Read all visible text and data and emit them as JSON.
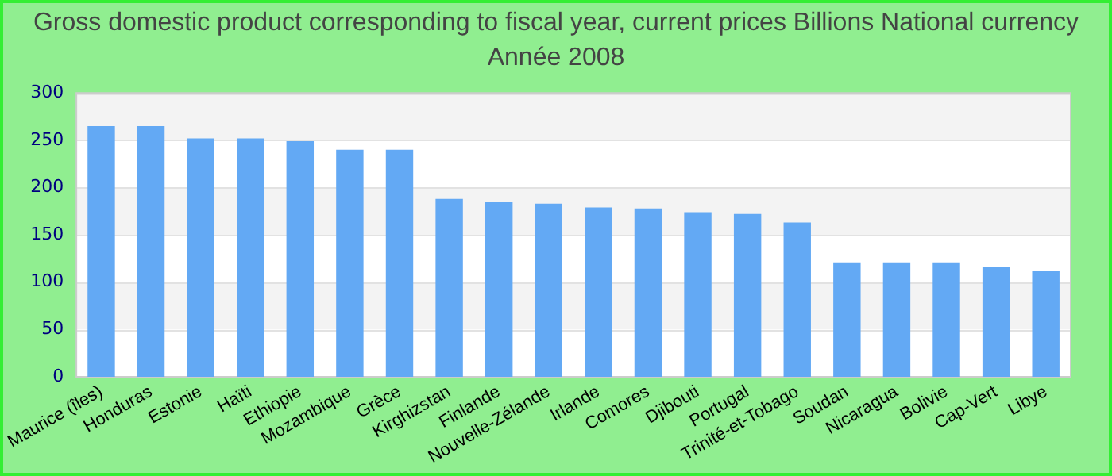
{
  "chart_data": {
    "type": "bar",
    "title": "Gross domestic product corresponding to fiscal year, current prices Billions National currency",
    "subtitle": "Année 2008",
    "categories": [
      "Maurice (îles)",
      "Honduras",
      "Estonie",
      "Haïti",
      "Ethiopie",
      "Mozambique",
      "Grèce",
      "Kirghizstan",
      "Finlande",
      "Nouvelle-Zélande",
      "Irlande",
      "Comores",
      "Djibouti",
      "Portugal",
      "Trinité-et-Tobago",
      "Soudan",
      "Nicaragua",
      "Bolivie",
      "Cap-Vert",
      "Libye"
    ],
    "values": [
      265,
      265,
      252,
      252,
      249,
      240,
      240,
      188,
      185,
      183,
      179,
      178,
      174,
      172,
      163,
      121,
      121,
      121,
      116,
      112
    ],
    "color": "#63a9f4",
    "ylim": [
      0,
      300
    ],
    "yticks": [
      0,
      50,
      100,
      150,
      200,
      250,
      300
    ],
    "grid": "y",
    "legend": false
  }
}
